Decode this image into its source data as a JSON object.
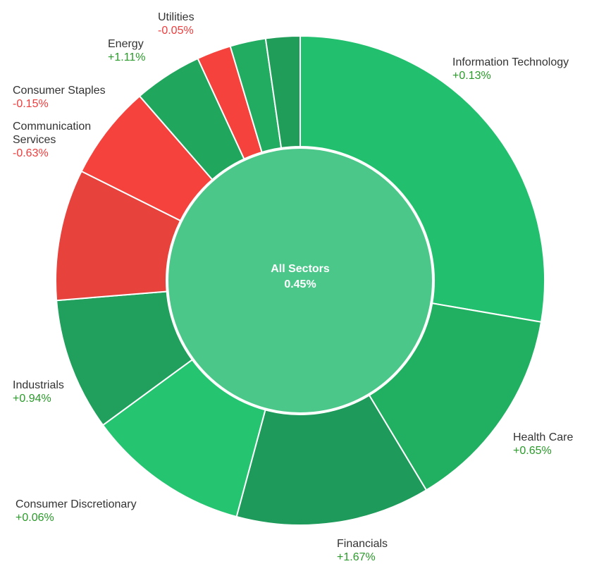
{
  "chart_data": {
    "type": "pie",
    "variant": "donut",
    "center": {
      "label": "All Sectors",
      "value": "0.45%",
      "color": "#4cc78a"
    },
    "slice_stroke": "#ffffff",
    "positive_text_color": "#2a9a2a",
    "negative_text_color": "#f03c3c",
    "slices": [
      {
        "name": "Information Technology",
        "change": "+0.13%",
        "weight": 29.4,
        "color": "#22c06e"
      },
      {
        "name": "Health Care",
        "change": "+0.65%",
        "weight": 14.5,
        "color": "#21b062"
      },
      {
        "name": "Financials",
        "change": "+1.67%",
        "weight": 13.6,
        "color": "#1e9a5a"
      },
      {
        "name": "Consumer Discretionary",
        "change": "+0.06%",
        "weight": 11.4,
        "color": "#24c471"
      },
      {
        "name": "Industrials",
        "change": "+0.94%",
        "weight": 9.3,
        "color": "#20a05c"
      },
      {
        "name": "",
        "change": "",
        "weight": 9.2,
        "color": "#e8423c"
      },
      {
        "name": "Communication\nServices",
        "change": "-0.63%",
        "weight": 6.6,
        "color": "#f5423d"
      },
      {
        "name": "Consumer Staples",
        "change": "-0.15%",
        "weight": 4.8,
        "color": "#21a65e"
      },
      {
        "name": "Energy",
        "change": "+1.11%",
        "weight": 2.4,
        "color": "#f5423d"
      },
      {
        "name": "Utilities",
        "change": "-0.05%",
        "weight": 2.5,
        "color": "#22ac62"
      },
      {
        "name": "",
        "change": "",
        "weight": 2.4,
        "color": "#1f9d59"
      }
    ]
  }
}
